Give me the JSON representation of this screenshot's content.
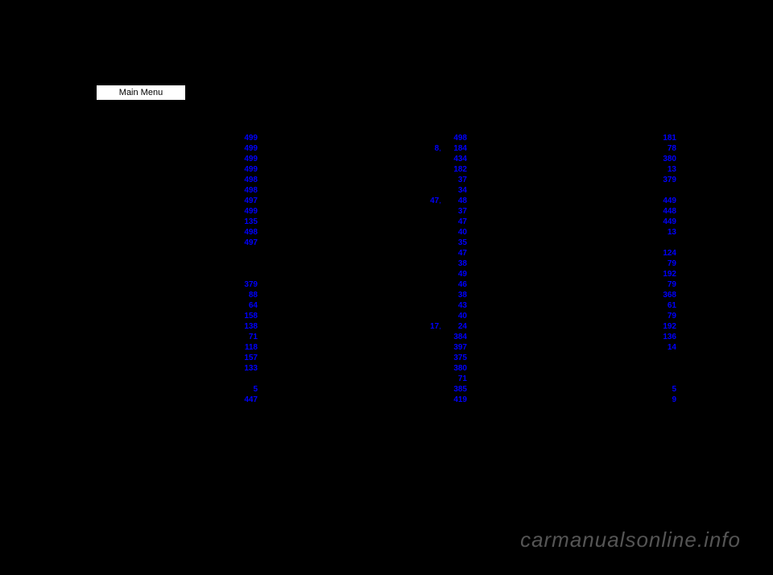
{
  "main_menu_label": "Main Menu",
  "watermark": "carmanualsonline.info",
  "columns": [
    [
      {
        "label": "",
        "pages": [
          "499"
        ]
      },
      {
        "label": "",
        "pages": [
          "499"
        ]
      },
      {
        "label": "",
        "pages": [
          "499"
        ]
      },
      {
        "label": "",
        "pages": [
          "499"
        ]
      },
      {
        "label": "",
        "pages": [
          "498"
        ]
      },
      {
        "label": "",
        "pages": [
          "498"
        ]
      },
      {
        "label": "",
        "pages": [
          "497"
        ]
      },
      {
        "label": "",
        "pages": [
          "499"
        ]
      },
      {
        "label": "",
        "pages": [
          "135"
        ]
      },
      {
        "label": "",
        "pages": [
          "498"
        ]
      },
      {
        "label": "",
        "pages": [
          "497"
        ]
      },
      {
        "label": "",
        "pages": []
      },
      {
        "label": "",
        "pages": []
      },
      {
        "label": "",
        "pages": []
      },
      {
        "label": "",
        "pages": [
          "379"
        ]
      },
      {
        "label": "",
        "pages": [
          "88"
        ]
      },
      {
        "label": "",
        "pages": [
          "64"
        ]
      },
      {
        "label": "",
        "pages": [
          "158"
        ]
      },
      {
        "label": "",
        "pages": [
          "138"
        ]
      },
      {
        "label": "",
        "pages": [
          "71"
        ]
      },
      {
        "label": "",
        "pages": [
          "118"
        ]
      },
      {
        "label": "",
        "pages": [
          "157"
        ]
      },
      {
        "label": "",
        "pages": [
          "133"
        ]
      },
      {
        "label": "",
        "pages": []
      },
      {
        "label": "",
        "pages": [
          "5"
        ]
      },
      {
        "label": "",
        "pages": [
          "447"
        ]
      }
    ],
    [
      {
        "label": "",
        "pages": [
          "498"
        ]
      },
      {
        "label": "",
        "pages": [
          "8",
          "184"
        ]
      },
      {
        "label": "",
        "pages": [
          "434"
        ]
      },
      {
        "label": "",
        "pages": [
          "182"
        ]
      },
      {
        "label": "",
        "pages": [
          "37"
        ]
      },
      {
        "label": "",
        "pages": [
          "34"
        ]
      },
      {
        "label": "",
        "pages": [
          "47",
          "48"
        ]
      },
      {
        "label": "",
        "pages": [
          "37"
        ]
      },
      {
        "label": "",
        "pages": [
          "47"
        ]
      },
      {
        "label": "",
        "pages": [
          "40"
        ]
      },
      {
        "label": "",
        "pages": [
          "35"
        ]
      },
      {
        "label": "",
        "pages": [
          "47"
        ]
      },
      {
        "label": "",
        "pages": [
          "38"
        ]
      },
      {
        "label": "",
        "pages": [
          "49"
        ]
      },
      {
        "label": "",
        "pages": [
          "46"
        ]
      },
      {
        "label": "",
        "pages": [
          "38"
        ]
      },
      {
        "label": "",
        "pages": [
          "43"
        ]
      },
      {
        "label": "",
        "pages": [
          "40"
        ]
      },
      {
        "label": "",
        "pages": [
          "17",
          "24"
        ]
      },
      {
        "label": "",
        "pages": [
          "384"
        ]
      },
      {
        "label": "",
        "pages": [
          "397"
        ]
      },
      {
        "label": "",
        "pages": [
          "375"
        ]
      },
      {
        "label": "",
        "pages": [
          "380"
        ]
      },
      {
        "label": "",
        "pages": [
          "71"
        ]
      },
      {
        "label": "",
        "pages": [
          "385"
        ]
      },
      {
        "label": "",
        "pages": [
          "419"
        ]
      }
    ],
    [
      {
        "label": "",
        "pages": [
          "181"
        ]
      },
      {
        "label": "",
        "pages": [
          "78"
        ]
      },
      {
        "label": "",
        "pages": [
          "380"
        ]
      },
      {
        "label": "",
        "pages": [
          "13"
        ]
      },
      {
        "label": "",
        "pages": [
          "379"
        ]
      },
      {
        "label": "",
        "pages": []
      },
      {
        "label": "",
        "pages": [
          "449"
        ]
      },
      {
        "label": "",
        "pages": [
          "448"
        ]
      },
      {
        "label": "",
        "pages": [
          "449"
        ]
      },
      {
        "label": "",
        "pages": [
          "13"
        ]
      },
      {
        "label": "",
        "pages": []
      },
      {
        "label": "",
        "pages": [
          "124"
        ]
      },
      {
        "label": "",
        "pages": [
          "79"
        ]
      },
      {
        "label": "",
        "pages": [
          "192"
        ]
      },
      {
        "label": "",
        "pages": [
          "79"
        ]
      },
      {
        "label": "",
        "pages": [
          "368"
        ]
      },
      {
        "label": "",
        "pages": [
          "61"
        ]
      },
      {
        "label": "",
        "pages": [
          "79"
        ]
      },
      {
        "label": "",
        "pages": [
          "192"
        ]
      },
      {
        "label": "",
        "pages": [
          "136"
        ]
      },
      {
        "label": "",
        "pages": [
          "14"
        ]
      },
      {
        "label": "",
        "pages": []
      },
      {
        "label": "",
        "pages": []
      },
      {
        "label": "",
        "pages": []
      },
      {
        "label": "",
        "pages": [
          "5"
        ]
      },
      {
        "label": "",
        "pages": [
          "9"
        ]
      }
    ]
  ]
}
